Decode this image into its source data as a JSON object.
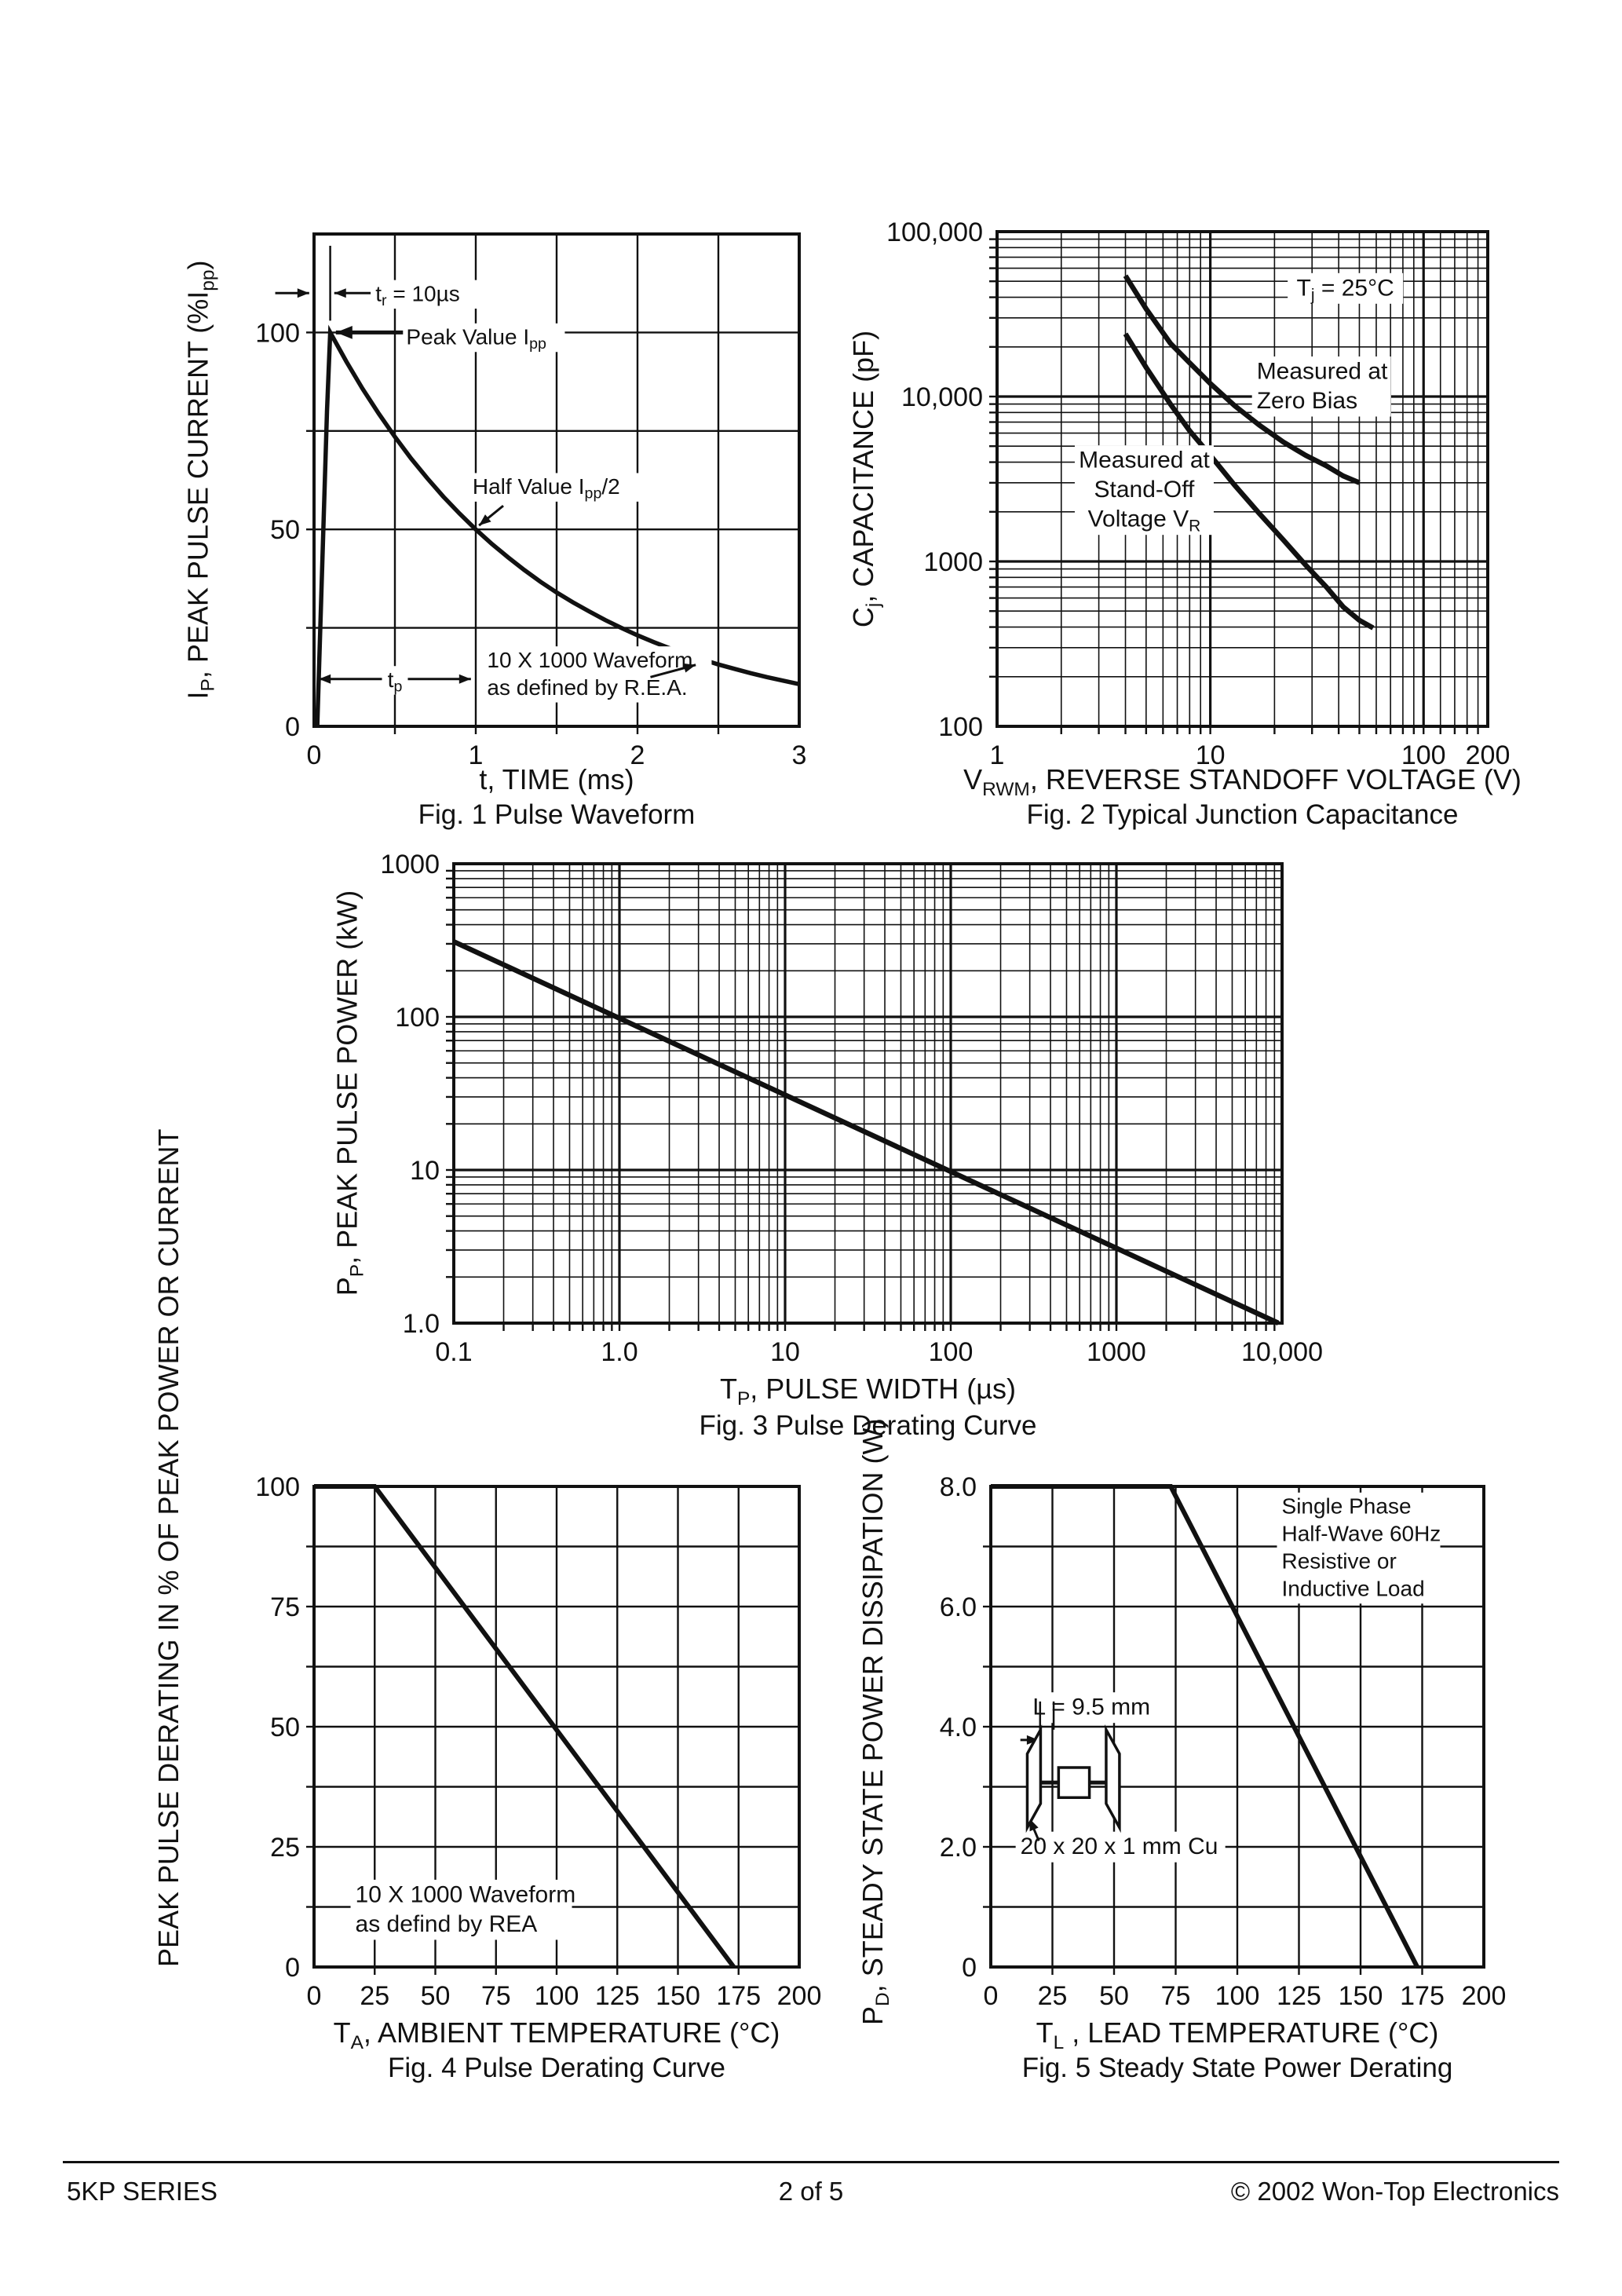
{
  "footer": {
    "left": "5KP SERIES",
    "center": "2 of 5",
    "right": "© 2002 Won-Top Electronics"
  },
  "chart_data": [
    {
      "id": "fig1",
      "type": "line",
      "title": "Fig. 1  Pulse Waveform",
      "xlabel": "t, TIME (ms)",
      "ylabel": "I_{P}, PEAK PULSE CURRENT (%I_{pp})",
      "x_scale": "linear",
      "y_scale": "linear",
      "xlim": [
        0,
        3
      ],
      "ylim": [
        0,
        125
      ],
      "grid": {
        "x_step": 0.5,
        "y_step": 25
      },
      "x_ticks": [
        {
          "v": 0,
          "t": "0"
        },
        {
          "v": 1,
          "t": "1"
        },
        {
          "v": 2,
          "t": "2"
        },
        {
          "v": 3,
          "t": "3"
        }
      ],
      "y_ticks": [
        {
          "v": 0,
          "t": "0"
        },
        {
          "v": 50,
          "t": "50"
        },
        {
          "v": 100,
          "t": "100"
        }
      ],
      "series": [
        {
          "name": "pulse-waveform",
          "w": 5.5,
          "points": [
            [
              0.02,
              0
            ],
            [
              0.05,
              40
            ],
            [
              0.08,
              80
            ],
            [
              0.1,
              100
            ],
            [
              0.2,
              92.6
            ],
            [
              0.3,
              85.7
            ],
            [
              0.4,
              79.4
            ],
            [
              0.5,
              73.5
            ],
            [
              0.6,
              68
            ],
            [
              0.7,
              63
            ],
            [
              0.8,
              58.3
            ],
            [
              0.9,
              54
            ],
            [
              1,
              50
            ],
            [
              1.1,
              46.3
            ],
            [
              1.2,
              42.9
            ],
            [
              1.3,
              39.7
            ],
            [
              1.4,
              36.7
            ],
            [
              1.5,
              34
            ],
            [
              1.6,
              31.5
            ],
            [
              1.7,
              29.2
            ],
            [
              1.8,
              27
            ],
            [
              1.9,
              25
            ],
            [
              2,
              23.1
            ],
            [
              2.1,
              21.4
            ],
            [
              2.2,
              19.8
            ],
            [
              2.3,
              18.4
            ],
            [
              2.4,
              17
            ],
            [
              2.5,
              15.7
            ],
            [
              2.6,
              14.6
            ],
            [
              2.7,
              13.5
            ],
            [
              2.8,
              12.5
            ],
            [
              2.9,
              11.6
            ],
            [
              3,
              10.7
            ]
          ]
        }
      ],
      "annotations": [
        {
          "text": "t_{r} = 10µs",
          "x": 0.38,
          "y": 108,
          "anchor": "start",
          "size": 28,
          "bg": true
        },
        {
          "text": "Peak Value I_{pp}",
          "x": 0.57,
          "y": 97,
          "anchor": "start",
          "size": 28,
          "bg": true
        },
        {
          "text": "Half Value I_{pp}/2",
          "x": 0.98,
          "y": 59,
          "anchor": "start",
          "size": 28,
          "bg": true
        },
        {
          "text": "t_{p}",
          "x": 0.5,
          "y": 10,
          "anchor": "middle",
          "size": 28,
          "bg": true
        },
        {
          "text": "10 X 1000 Waveform\nas defined by R.E.A.",
          "x": 1.07,
          "y": 15,
          "anchor": "start",
          "size": 28,
          "bg": true
        }
      ],
      "arrows": [
        {
          "from": [
            -0.24,
            110
          ],
          "to": [
            -0.03,
            110
          ],
          "head": "end",
          "w": 3
        },
        {
          "from": [
            0.1,
            103
          ],
          "to": [
            0.1,
            122
          ],
          "head": "none",
          "w": 2.5
        },
        {
          "from": [
            0.35,
            110
          ],
          "to": [
            0.125,
            110
          ],
          "head": "end",
          "w": 3
        },
        {
          "from": [
            0.55,
            100
          ],
          "to": [
            0.135,
            100
          ],
          "head": "end",
          "w": 5
        },
        {
          "from": [
            1.17,
            56
          ],
          "to": [
            1.02,
            51
          ],
          "head": "end",
          "w": 3
        },
        {
          "from": [
            0.03,
            12
          ],
          "to": [
            0.42,
            12
          ],
          "head": "start",
          "w": 3
        },
        {
          "from": [
            0.58,
            12
          ],
          "to": [
            0.97,
            12
          ],
          "head": "end",
          "w": 3
        },
        {
          "from": [
            2.08,
            12.5
          ],
          "to": [
            2.36,
            15.6
          ],
          "head": "end",
          "w": 3
        }
      ]
    },
    {
      "id": "fig2",
      "type": "line",
      "title": "Fig. 2  Typical Junction Capacitance",
      "xlabel": "V_{RWM}, REVERSE STANDOFF VOLTAGE (V)",
      "ylabel": "C_{j}, CAPACITANCE (pF)",
      "x_scale": "log",
      "y_scale": "log",
      "xlim": [
        1,
        200
      ],
      "ylim": [
        100,
        100000
      ],
      "x_minor_extra": [
        120,
        140,
        160,
        180
      ],
      "x_ticks": [
        {
          "v": 1,
          "t": "1"
        },
        {
          "v": 10,
          "t": "10"
        },
        {
          "v": 100,
          "t": "100"
        },
        {
          "v": 200,
          "t": "200"
        }
      ],
      "y_ticks": [
        {
          "v": 100,
          "t": "100"
        },
        {
          "v": 1000,
          "t": "1000"
        },
        {
          "v": 10000,
          "t": "10,000"
        },
        {
          "v": 100000,
          "t": "100,000"
        }
      ],
      "series": [
        {
          "name": "measured-at-zero-bias",
          "w": 6.5,
          "points": [
            [
              4,
              54000
            ],
            [
              5,
              34000
            ],
            [
              6.5,
              21000
            ],
            [
              8,
              16000
            ],
            [
              10,
              12000
            ],
            [
              13,
              8800
            ],
            [
              17,
              6700
            ],
            [
              22,
              5300
            ],
            [
              28,
              4400
            ],
            [
              35,
              3800
            ],
            [
              42,
              3300
            ],
            [
              50,
              3000
            ]
          ]
        },
        {
          "name": "measured-at-stand-off-voltage",
          "w": 6.5,
          "points": [
            [
              4,
              24000
            ],
            [
              5,
              15000
            ],
            [
              6.5,
              9000
            ],
            [
              8,
              6200
            ],
            [
              10,
              4400
            ],
            [
              13,
              2900
            ],
            [
              17,
              1950
            ],
            [
              22,
              1350
            ],
            [
              28,
              950
            ],
            [
              35,
              700
            ],
            [
              42,
              530
            ],
            [
              50,
              440
            ],
            [
              58,
              395
            ]
          ]
        }
      ],
      "annotations": [
        {
          "text": "T_{j} = 25°C",
          "x": 43,
          "y": 41000,
          "anchor": "middle",
          "size": 30,
          "bg": true
        },
        {
          "text": "Measured at\nZero Bias",
          "x": 16.5,
          "y": 12800,
          "anchor": "start",
          "size": 30,
          "bg": true
        },
        {
          "text": "Measured at\nStand-Off\nVoltage V_{R}",
          "x": 4.9,
          "y": 3700,
          "anchor": "middle",
          "size": 30,
          "bg": true
        }
      ],
      "arrows": []
    },
    {
      "id": "fig3",
      "type": "line",
      "title": "Fig. 3  Pulse Derating Curve",
      "xlabel": "T_{P}, PULSE WIDTH (µs)",
      "ylabel": "P_{P}, PEAK PULSE POWER (kW)",
      "x_scale": "log",
      "y_scale": "log",
      "xlim": [
        0.1,
        10000
      ],
      "ylim": [
        1,
        1000
      ],
      "x_ticks": [
        {
          "v": 0.1,
          "t": "0.1"
        },
        {
          "v": 1,
          "t": "1.0"
        },
        {
          "v": 10,
          "t": "10"
        },
        {
          "v": 100,
          "t": "100"
        },
        {
          "v": 1000,
          "t": "1000"
        },
        {
          "v": 10000,
          "t": "10,000"
        }
      ],
      "y_ticks": [
        {
          "v": 1,
          "t": "1.0"
        },
        {
          "v": 10,
          "t": "10"
        },
        {
          "v": 100,
          "t": "100"
        },
        {
          "v": 1000,
          "t": "1000"
        }
      ],
      "series": [
        {
          "name": "pulse-derating-line",
          "w": 6.5,
          "points": [
            [
              0.1,
              310
            ],
            [
              9500,
              1
            ]
          ]
        }
      ],
      "annotations": [],
      "arrows": []
    },
    {
      "id": "fig4",
      "type": "line",
      "title": "Fig. 4  Pulse Derating Curve",
      "xlabel": "T_{A}, AMBIENT TEMPERATURE (°C)",
      "ylabel": "PEAK PULSE DERATING IN % OF\nPEAK POWER OR CURRENT",
      "x_scale": "linear",
      "y_scale": "linear",
      "xlim": [
        0,
        200
      ],
      "ylim": [
        0,
        100
      ],
      "grid": {
        "x_step": 25,
        "y_step": 12.5
      },
      "x_ticks": [
        {
          "v": 0,
          "t": "0"
        },
        {
          "v": 25,
          "t": "25"
        },
        {
          "v": 50,
          "t": "50"
        },
        {
          "v": 75,
          "t": "75"
        },
        {
          "v": 100,
          "t": "100"
        },
        {
          "v": 125,
          "t": "125"
        },
        {
          "v": 150,
          "t": "150"
        },
        {
          "v": 175,
          "t": "175"
        },
        {
          "v": 200,
          "t": "200"
        }
      ],
      "y_ticks": [
        {
          "v": 0,
          "t": "0"
        },
        {
          "v": 25,
          "t": "25"
        },
        {
          "v": 50,
          "t": "50"
        },
        {
          "v": 75,
          "t": "75"
        },
        {
          "v": 100,
          "t": "100"
        }
      ],
      "series": [
        {
          "name": "pulse-derating",
          "w": 6,
          "points": [
            [
              0,
              100
            ],
            [
              25,
              100
            ],
            [
              173,
              0
            ]
          ]
        }
      ],
      "annotations": [
        {
          "text": "10 X 1000 Waveform\nas defind by REA",
          "x": 17,
          "y": 13.5,
          "anchor": "start",
          "size": 30,
          "bg": true
        }
      ],
      "arrows": []
    },
    {
      "id": "fig5",
      "type": "line",
      "title": "Fig. 5  Steady State Power Derating",
      "xlabel": "T_{L} , LEAD TEMPERATURE (°C)",
      "ylabel": "P_{D}, STEADY STATE POWER DISSIPATION (W)",
      "x_scale": "linear",
      "y_scale": "linear",
      "xlim": [
        0,
        200
      ],
      "ylim": [
        0,
        8
      ],
      "grid": {
        "x_step": 25,
        "y_step": 1
      },
      "x_ticks": [
        {
          "v": 0,
          "t": "0"
        },
        {
          "v": 25,
          "t": "25"
        },
        {
          "v": 50,
          "t": "50"
        },
        {
          "v": 75,
          "t": "75"
        },
        {
          "v": 100,
          "t": "100"
        },
        {
          "v": 125,
          "t": "125"
        },
        {
          "v": 150,
          "t": "150"
        },
        {
          "v": 175,
          "t": "175"
        },
        {
          "v": 200,
          "t": "200"
        }
      ],
      "y_ticks": [
        {
          "v": 0,
          "t": "0"
        },
        {
          "v": 2,
          "t": "2.0"
        },
        {
          "v": 4,
          "t": "4.0"
        },
        {
          "v": 6,
          "t": "6.0"
        },
        {
          "v": 8,
          "t": "8.0"
        }
      ],
      "series": [
        {
          "name": "steady-state-derating",
          "w": 6,
          "points": [
            [
              0,
              8
            ],
            [
              73,
              8
            ],
            [
              173,
              0
            ]
          ]
        }
      ],
      "annotations": [
        {
          "text": "Single Phase\nHalf-Wave 60Hz\nResistive or\nInductive Load",
          "x": 118,
          "y": 7.55,
          "anchor": "start",
          "size": 28,
          "bg": true
        },
        {
          "text": "L = 9.5 mm",
          "x": 17,
          "y": 4.2,
          "anchor": "start",
          "size": 30,
          "bg": true
        },
        {
          "text": "20 x 20 x 1 mm Cu",
          "x": 12,
          "y": 1.88,
          "anchor": "start",
          "size": 30,
          "bg": true
        }
      ],
      "arrows": [
        {
          "from": [
            12,
            3.78
          ],
          "to": [
            19.4,
            3.78
          ],
          "head": "end",
          "w": 3
        },
        {
          "from": [
            20,
            4.42
          ],
          "to": [
            20,
            3.55
          ],
          "head": "none",
          "w": 2.5
        },
        {
          "from": [
            25.5,
            4.42
          ],
          "to": [
            25.5,
            3.95
          ],
          "head": "none",
          "w": 2.5
        },
        {
          "from": [
            19.5,
            2.1
          ],
          "to": [
            15.7,
            2.47
          ],
          "head": "end",
          "w": 3
        }
      ]
    }
  ]
}
